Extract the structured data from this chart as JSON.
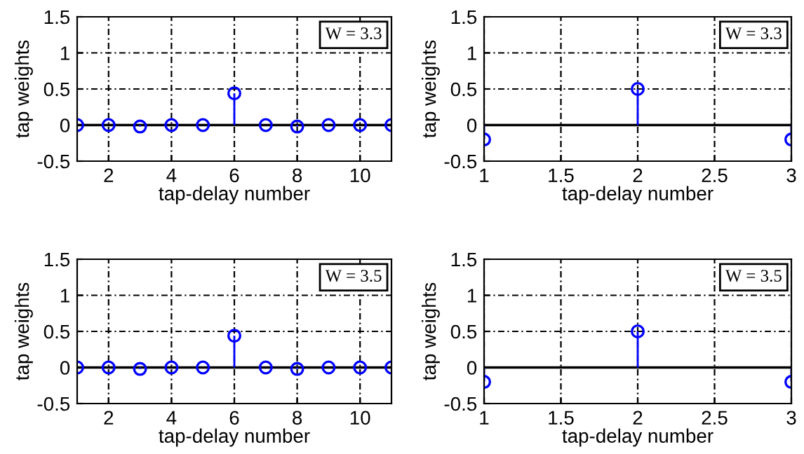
{
  "chart_data": [
    {
      "type": "lollipop",
      "xlabel": "tap-delay number",
      "ylabel": "tap weights",
      "annotations": [
        "W = 3.3"
      ],
      "x": [
        1,
        2,
        3,
        4,
        5,
        6,
        7,
        8,
        9,
        10,
        11
      ],
      "series": [
        {
          "color": "#0000ff",
          "values": [
            0,
            0,
            -0.02,
            0,
            0,
            0.44,
            0,
            -0.02,
            0,
            0,
            0
          ]
        }
      ],
      "xlim": [
        1,
        11
      ],
      "xticks": [
        2,
        4,
        6,
        8,
        10
      ],
      "ylim": [
        -0.5,
        1.5
      ],
      "yticks": [
        -0.5,
        0,
        0.5,
        1,
        1.5
      ],
      "grid": true,
      "marker": "circle",
      "ref_lines": [
        {
          "axis": "y",
          "value": 0,
          "color": "#000000"
        }
      ]
    },
    {
      "type": "lollipop",
      "xlabel": "tap-delay number",
      "ylabel": "tap weights",
      "annotations": [
        "W = 3.3"
      ],
      "x": [
        1,
        2,
        3
      ],
      "series": [
        {
          "color": "#0000ff",
          "values": [
            -0.2,
            0.5,
            -0.2
          ]
        }
      ],
      "xlim": [
        1,
        3
      ],
      "xticks": [
        1,
        1.5,
        2,
        2.5,
        3
      ],
      "ylim": [
        -0.5,
        1.5
      ],
      "yticks": [
        -0.5,
        0,
        0.5,
        1,
        1.5
      ],
      "grid": true,
      "marker": "circle",
      "ref_lines": [
        {
          "axis": "y",
          "value": 0,
          "color": "#000000"
        }
      ]
    },
    {
      "type": "lollipop",
      "xlabel": "tap-delay number",
      "ylabel": "tap weights",
      "annotations": [
        "W = 3.5"
      ],
      "x": [
        1,
        2,
        3,
        4,
        5,
        6,
        7,
        8,
        9,
        10,
        11
      ],
      "series": [
        {
          "color": "#0000ff",
          "values": [
            0,
            0,
            -0.02,
            0,
            0,
            0.44,
            0,
            -0.02,
            0,
            0,
            0
          ]
        }
      ],
      "xlim": [
        1,
        11
      ],
      "xticks": [
        2,
        4,
        6,
        8,
        10
      ],
      "ylim": [
        -0.5,
        1.5
      ],
      "yticks": [
        -0.5,
        0,
        0.5,
        1,
        1.5
      ],
      "grid": true,
      "marker": "circle",
      "ref_lines": [
        {
          "axis": "y",
          "value": 0,
          "color": "#000000"
        }
      ]
    },
    {
      "type": "lollipop",
      "xlabel": "tap-delay number",
      "ylabel": "tap weights",
      "annotations": [
        "W = 3.5"
      ],
      "x": [
        1,
        2,
        3
      ],
      "series": [
        {
          "color": "#0000ff",
          "values": [
            -0.2,
            0.5,
            -0.2
          ]
        }
      ],
      "xlim": [
        1,
        3
      ],
      "xticks": [
        1,
        1.5,
        2,
        2.5,
        3
      ],
      "ylim": [
        -0.5,
        1.5
      ],
      "yticks": [
        -0.5,
        0,
        0.5,
        1,
        1.5
      ],
      "grid": true,
      "marker": "circle",
      "ref_lines": [
        {
          "axis": "y",
          "value": 0,
          "color": "#000000"
        }
      ]
    }
  ]
}
